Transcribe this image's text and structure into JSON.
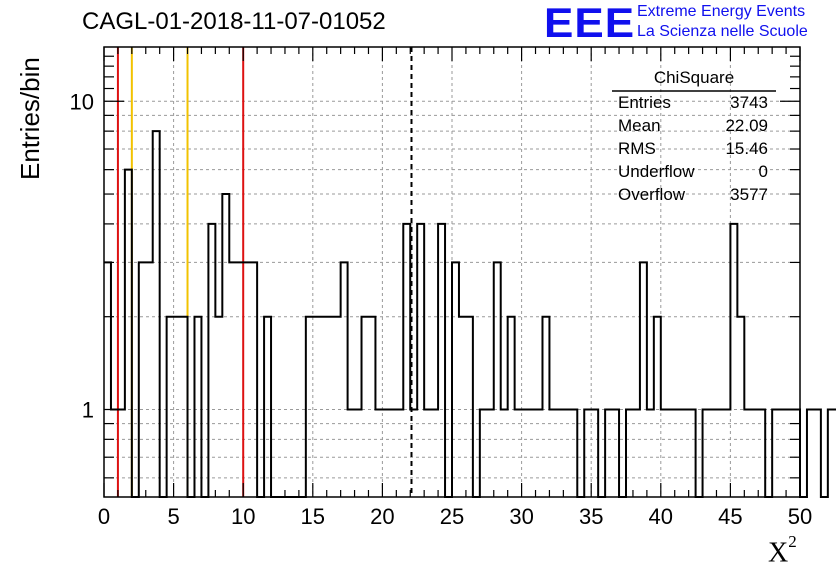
{
  "title": "CAGL-01-2018-11-07-01052",
  "logo": {
    "mark": "EEE",
    "line1": "Extreme Energy Events",
    "line2": "La Scienza nelle Scuole",
    "color": "#1010ee"
  },
  "stats": {
    "title": "ChiSquare",
    "rows": [
      {
        "label": "Entries",
        "value": "3743"
      },
      {
        "label": "Mean",
        "value": "22.09"
      },
      {
        "label": "RMS",
        "value": "15.46"
      },
      {
        "label": "Underflow",
        "value": "0"
      },
      {
        "label": "Overflow",
        "value": "3577"
      }
    ]
  },
  "chart_data": {
    "type": "histogram",
    "ylabel": "Entries/bin",
    "xlabel": "X",
    "xlabel_superscript": "2",
    "xlim": [
      0,
      50
    ],
    "ylim": [
      0.52,
      15
    ],
    "yscale": "log",
    "grid": true,
    "x_ticks": [
      "0",
      "5",
      "10",
      "15",
      "20",
      "25",
      "30",
      "35",
      "40",
      "45",
      "50"
    ],
    "y_ticks": [
      "1",
      "10"
    ],
    "bin_width": 0.5,
    "bin_values": [
      3,
      1,
      1,
      6,
      0,
      3,
      3,
      8,
      0,
      2,
      2,
      2,
      0,
      2,
      0,
      4,
      2,
      5,
      3,
      3,
      3,
      3,
      0,
      2,
      0,
      0,
      0,
      0,
      0,
      2,
      2,
      2,
      2,
      2,
      3,
      1,
      1,
      2,
      2,
      1,
      1,
      1,
      1,
      4,
      1,
      4,
      1,
      1,
      4,
      0,
      3,
      2,
      2,
      0,
      1,
      1,
      3,
      1,
      2,
      1,
      1,
      1,
      1,
      2,
      1,
      1,
      1,
      1,
      0,
      1,
      1,
      0,
      1,
      1,
      0,
      1,
      1,
      3,
      1,
      2,
      1,
      1,
      1,
      1,
      1,
      0,
      1,
      1,
      1,
      1,
      4,
      2,
      1,
      1,
      1,
      0,
      1,
      1,
      1,
      1,
      0,
      1,
      1,
      0,
      1,
      1,
      1,
      0,
      1,
      1,
      1,
      4,
      2,
      1,
      1,
      2,
      1,
      2,
      1,
      1,
      1,
      2,
      2,
      3,
      4,
      2,
      1,
      1,
      0,
      1,
      1,
      0,
      1,
      1,
      1,
      0,
      1,
      1,
      0,
      1,
      1,
      1,
      0,
      1,
      1,
      0,
      3,
      4,
      4,
      3
    ],
    "vertical_lines": [
      {
        "x": 1,
        "color": "#dd1111",
        "style": "solid"
      },
      {
        "x": 2,
        "color": "#f2c200",
        "style": "solid"
      },
      {
        "x": 6,
        "color": "#f2c200",
        "style": "solid"
      },
      {
        "x": 10,
        "color": "#dd1111",
        "style": "solid"
      },
      {
        "x": 22.09,
        "color": "#000000",
        "style": "dashed"
      }
    ],
    "line_color": "#000000"
  }
}
